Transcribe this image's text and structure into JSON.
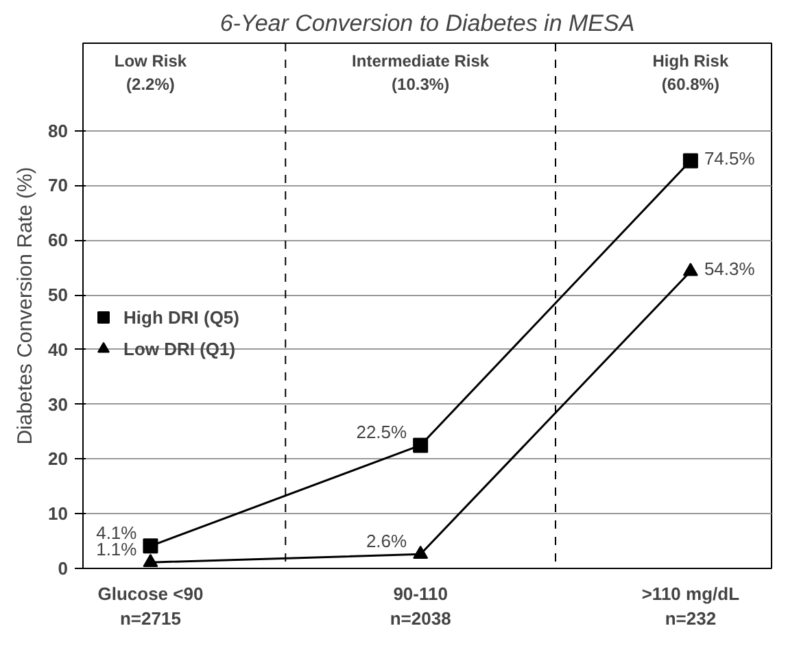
{
  "chart_data": {
    "type": "line",
    "title": "6-Year Conversion to Diabetes in MESA",
    "ylabel": "Diabetes Conversion Rate (%)",
    "categories": [
      "Glucose <90\nn=2715",
      "90-110\nn=2038",
      ">110 mg/dL\nn=232"
    ],
    "series": [
      {
        "name": "High DRI (Q5)",
        "color": "#000000",
        "marker": "square",
        "values": [
          4.1,
          22.5,
          74.5
        ],
        "value_labels": [
          "4.1%",
          "22.5%",
          "74.5%"
        ]
      },
      {
        "name": "Low DRI (Q1)",
        "color": "#000000",
        "marker": "triangle",
        "values": [
          1.1,
          2.6,
          54.3
        ],
        "value_labels": [
          "1.1%",
          "2.6%",
          "54.3%"
        ]
      }
    ],
    "annotations": [
      "Low Risk\n(2.2%)",
      "Intermediate Risk\n(10.3%)",
      "High Risk\n(60.8%)"
    ],
    "ylim": [
      0,
      96
    ],
    "yticks": [
      0,
      10,
      20,
      30,
      40,
      50,
      60,
      70,
      80
    ],
    "grid": "y",
    "legend": "left",
    "line_style": "solid"
  }
}
